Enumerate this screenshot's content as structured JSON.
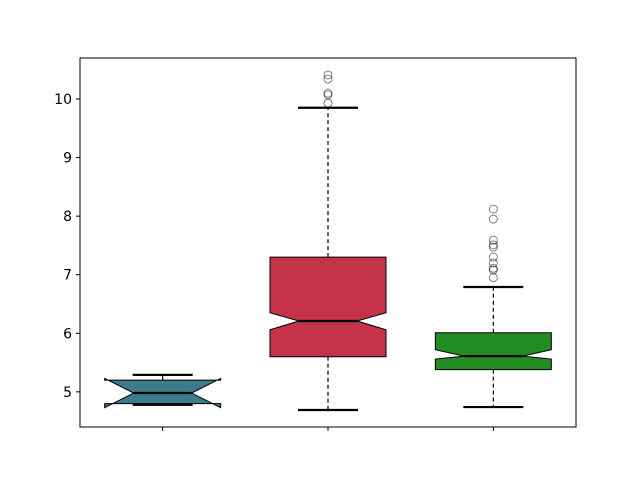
{
  "chart_data": {
    "type": "boxplot",
    "notched": true,
    "title": "",
    "xlabel": "",
    "ylabel": "",
    "ylim": [
      4.4,
      10.7
    ],
    "yticks": [
      5,
      6,
      7,
      8,
      9,
      10
    ],
    "grid": false,
    "categories": [
      "",
      "",
      ""
    ],
    "boxes": [
      {
        "color": "#3d7a8a",
        "whisker_low": 4.78,
        "q1": 4.8,
        "notch_low": 4.73,
        "median": 4.98,
        "notch_high": 5.23,
        "q3": 5.2,
        "whisker_high": 5.29,
        "outliers": []
      },
      {
        "color": "#c5334a",
        "whisker_low": 4.69,
        "q1": 5.6,
        "notch_low": 6.06,
        "median": 6.21,
        "notch_high": 6.35,
        "q3": 7.3,
        "whisker_high": 9.85,
        "outliers": [
          10.41,
          10.34,
          10.1,
          10.07,
          9.93
        ]
      },
      {
        "color": "#228b22",
        "whisker_low": 4.74,
        "q1": 5.38,
        "notch_low": 5.56,
        "median": 5.61,
        "notch_high": 5.72,
        "q3": 6.01,
        "whisker_high": 6.79,
        "outliers": [
          8.12,
          7.95,
          7.59,
          7.51,
          7.47,
          7.3,
          7.2,
          7.11,
          7.08,
          6.95
        ]
      }
    ]
  }
}
